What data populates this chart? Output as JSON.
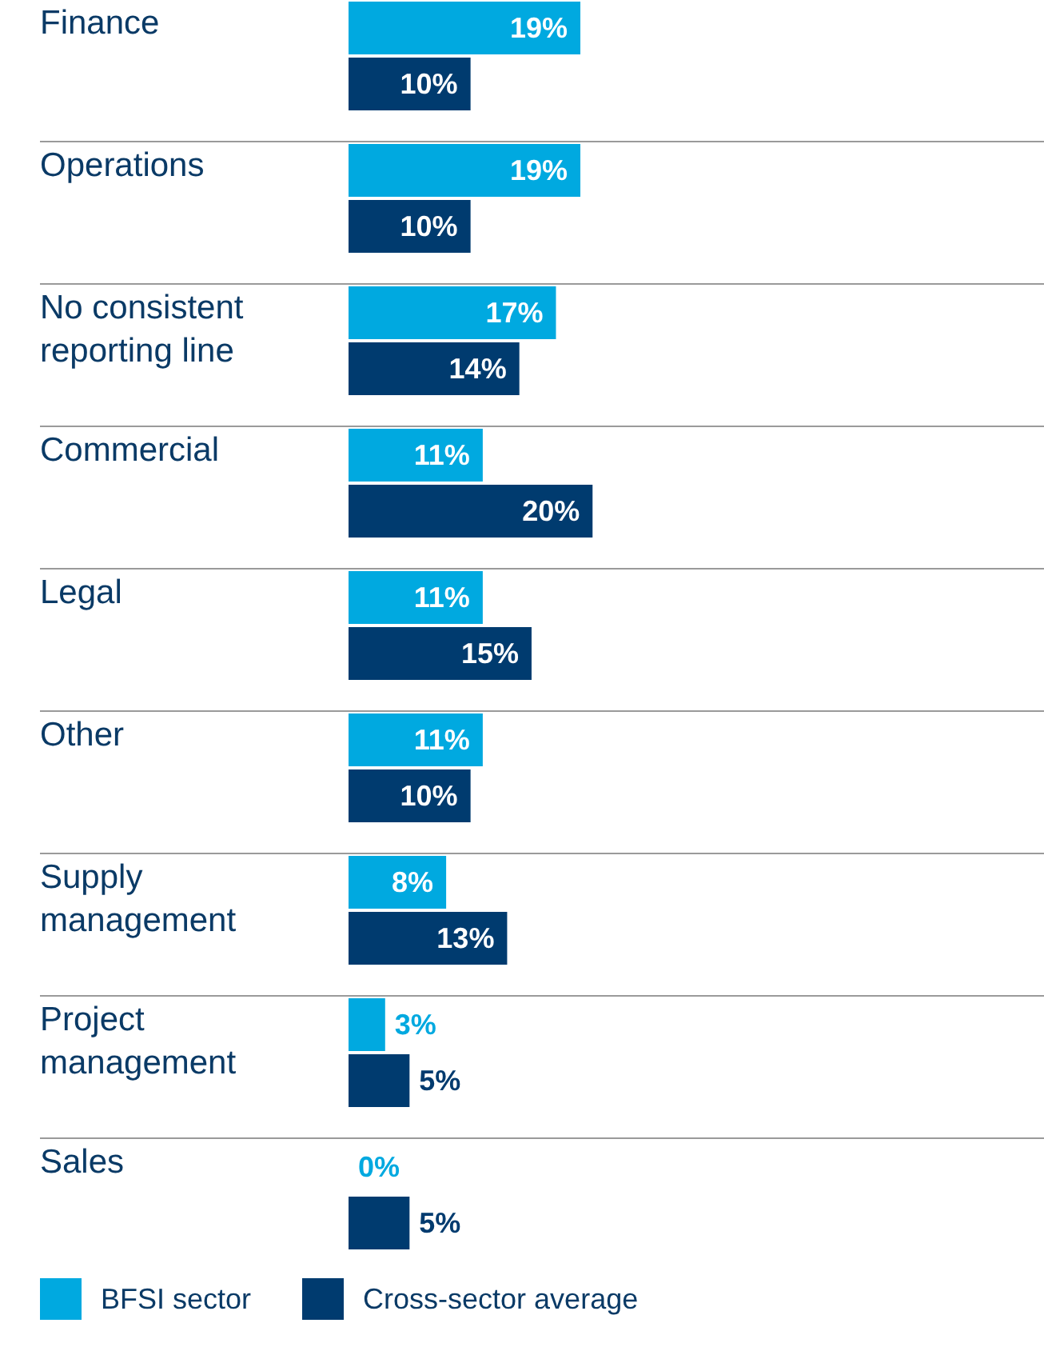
{
  "chart_data": {
    "type": "bar",
    "orientation": "horizontal",
    "categories": [
      "Finance",
      "Operations",
      "No consistent reporting line",
      "Commercial",
      "Legal",
      "Other",
      "Supply management",
      "Project management",
      "Sales"
    ],
    "series": [
      {
        "name": "BFSI sector",
        "color": "#00a9e0",
        "values": [
          19,
          19,
          17,
          11,
          11,
          11,
          8,
          3,
          0
        ],
        "value_labels": [
          "19%",
          "19%",
          "17%",
          "11%",
          "11%",
          "11%",
          "8%",
          "3%",
          "0%"
        ]
      },
      {
        "name": "Cross-sector average",
        "color": "#003b6f",
        "values": [
          10,
          10,
          14,
          20,
          15,
          10,
          13,
          5,
          5
        ],
        "value_labels": [
          "10%",
          "10%",
          "14%",
          "20%",
          "15%",
          "10%",
          "13%",
          "5%",
          "5%"
        ]
      }
    ],
    "legend": "bottom left"
  }
}
